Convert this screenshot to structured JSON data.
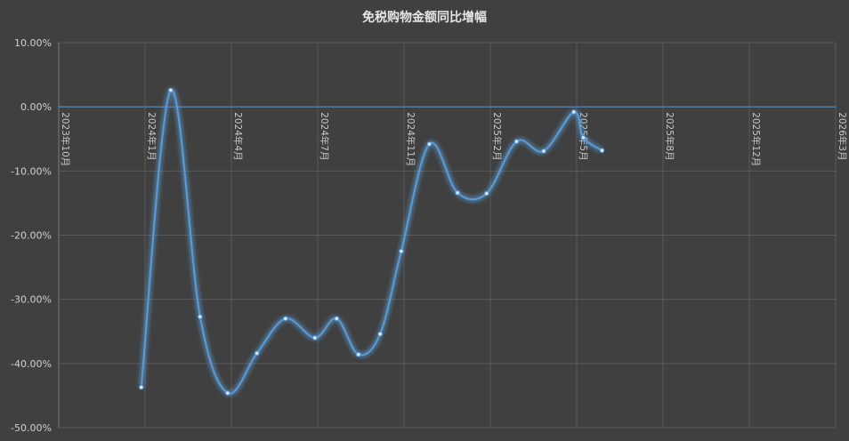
{
  "chart_data": {
    "type": "line",
    "title": "免税购物金额同比增幅",
    "xlabel": "",
    "ylabel": "",
    "ylim": [
      -50,
      10
    ],
    "yticks": [
      "10.00%",
      "0.00%",
      "-10.00%",
      "-20.00%",
      "-30.00%",
      "-40.00%",
      "-50.00%"
    ],
    "x_tick_labels": [
      "2023年10月",
      "2024年1月",
      "2024年4月",
      "2024年7月",
      "2024年11月",
      "2025年2月",
      "2025年5月",
      "2025年8月",
      "2025年12月",
      "2026年3月"
    ],
    "grid": true,
    "legend": "none",
    "smooth": true,
    "series": [
      {
        "color": "#5b9bd5",
        "points": [
          {
            "x": "2023-12-28",
            "y": -43.7
          },
          {
            "x": "2024-01-28",
            "y": 2.6
          },
          {
            "x": "2024-02-28",
            "y": -32.7
          },
          {
            "x": "2024-03-28",
            "y": -44.6
          },
          {
            "x": "2024-04-28",
            "y": -38.4
          },
          {
            "x": "2024-05-28",
            "y": -33.0
          },
          {
            "x": "2024-06-28",
            "y": -36.0
          },
          {
            "x": "2024-07-28",
            "y": -33.0
          },
          {
            "x": "2024-08-28",
            "y": -38.6
          },
          {
            "x": "2024-09-28",
            "y": -35.4
          },
          {
            "x": "2024-10-28",
            "y": -22.5
          },
          {
            "x": "2024-11-28",
            "y": -5.8
          },
          {
            "x": "2024-12-28",
            "y": -13.4
          },
          {
            "x": "2025-01-28",
            "y": -13.5
          },
          {
            "x": "2025-02-28",
            "y": -5.4
          },
          {
            "x": "2025-03-28",
            "y": -6.9
          },
          {
            "x": "2025-04-28",
            "y": -0.8
          },
          {
            "x": "2025-05-08",
            "y": -4.8
          },
          {
            "x": "2025-05-28",
            "y": -6.8
          }
        ]
      }
    ]
  }
}
